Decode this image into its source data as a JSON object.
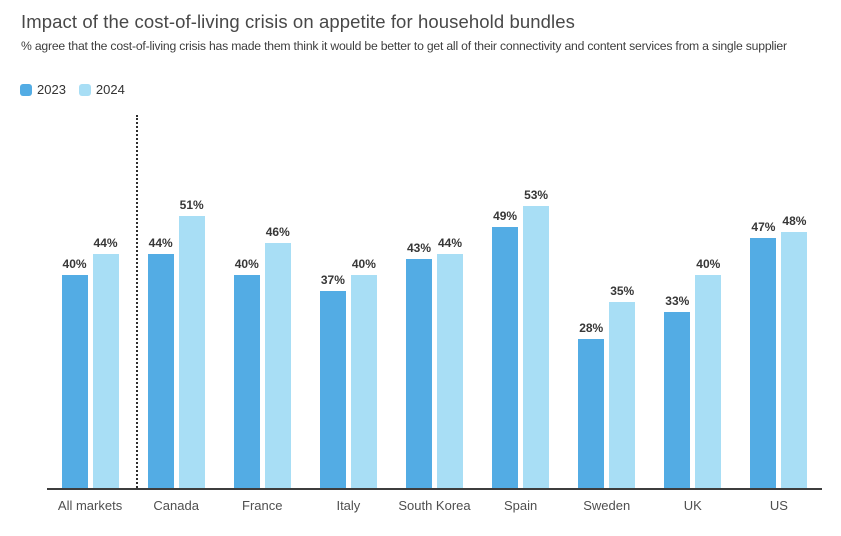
{
  "header": {
    "title": "Impact of the cost-of-living crisis on appetite for household bundles",
    "subtitle": "% agree that the cost-of-living crisis has made them think it would be better to get all of their connectivity and content services from a single supplier"
  },
  "colors": {
    "series_2023": "#53ACE4",
    "series_2024": "#A8DEF5",
    "axis": "#3d3d3d",
    "separator": "#2d2d2d",
    "title_text": "#484848",
    "value_label_text": "#373737",
    "category_label_text": "#4f4f4f"
  },
  "chart_data": {
    "type": "bar",
    "title": "Impact of the cost-of-living crisis on appetite for household bundles",
    "subtitle": "% agree that the cost-of-living crisis has made them think it would be better to get all of their connectivity and content services from a single supplier",
    "categories": [
      "All markets",
      "Canada",
      "France",
      "Italy",
      "South Korea",
      "Spain",
      "Sweden",
      "UK",
      "US"
    ],
    "series": [
      {
        "name": "2023",
        "color": "#53ACE4",
        "values": [
          40,
          44,
          40,
          37,
          43,
          49,
          28,
          33,
          47
        ]
      },
      {
        "name": "2024",
        "color": "#A8DEF5",
        "values": [
          44,
          51,
          46,
          40,
          44,
          53,
          35,
          40,
          48
        ]
      }
    ],
    "value_suffix": "%",
    "data_labels": true,
    "grid": false,
    "y_axis_visible": false,
    "ylim": [
      0,
      70
    ],
    "legend_position": "top-left",
    "separator_after_category": "All markets"
  }
}
